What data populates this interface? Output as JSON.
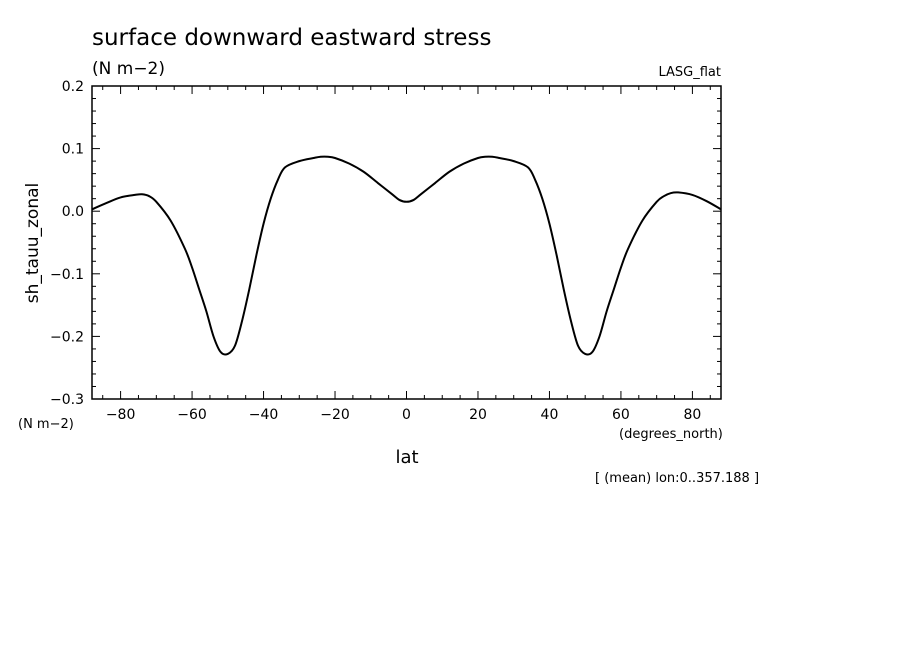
{
  "chart_data": {
    "type": "line",
    "title": "surface downward eastward stress",
    "subtitle": "(N m−2)",
    "source_label": "LASG_flat",
    "ylabel": "sh_tauu_zonal",
    "yunits": "(N m−2)",
    "xlabel": "lat",
    "xunits": "(degrees_north)",
    "note": "[ (mean) lon:0..357.188 ]",
    "xlim": [
      -88,
      88
    ],
    "ylim": [
      -0.3,
      0.2
    ],
    "x_ticks": [
      -80,
      -60,
      -40,
      -20,
      0,
      20,
      40,
      60,
      80
    ],
    "x_tick_labels": [
      "−80",
      "−60",
      "−40",
      "−20",
      "0",
      "20",
      "40",
      "60",
      "80"
    ],
    "y_ticks": [
      -0.3,
      -0.2,
      -0.1,
      0.0,
      0.1,
      0.2
    ],
    "y_tick_labels": [
      "−0.3",
      "−0.2",
      "−0.1",
      "0.0",
      "0.1",
      "0.2"
    ],
    "grid": false,
    "series": [
      {
        "color": "#000000",
        "x": [
          -88,
          -84,
          -80,
          -76,
          -74,
          -72,
          -70,
          -66,
          -62,
          -60,
          -58,
          -56,
          -54,
          -52,
          -50,
          -48,
          -46,
          -44,
          -42,
          -40,
          -38,
          -36,
          -34,
          -30,
          -26,
          -24,
          -22,
          -20,
          -16,
          -12,
          -8,
          -4,
          -2,
          0,
          2,
          4,
          8,
          12,
          16,
          20,
          22,
          24,
          26,
          30,
          34,
          36,
          38,
          40,
          42,
          44,
          46,
          48,
          50,
          52,
          54,
          56,
          58,
          60,
          62,
          66,
          70,
          72,
          74,
          76,
          80,
          84,
          88
        ],
        "y": [
          0.003,
          0.013,
          0.022,
          0.026,
          0.027,
          0.024,
          0.015,
          -0.015,
          -0.06,
          -0.09,
          -0.125,
          -0.16,
          -0.2,
          -0.225,
          -0.228,
          -0.215,
          -0.175,
          -0.125,
          -0.07,
          -0.02,
          0.02,
          0.05,
          0.07,
          0.08,
          0.085,
          0.087,
          0.087,
          0.085,
          0.076,
          0.063,
          0.045,
          0.027,
          0.018,
          0.015,
          0.018,
          0.027,
          0.045,
          0.063,
          0.076,
          0.085,
          0.087,
          0.087,
          0.085,
          0.08,
          0.07,
          0.05,
          0.02,
          -0.02,
          -0.07,
          -0.125,
          -0.175,
          -0.215,
          -0.228,
          -0.225,
          -0.2,
          -0.16,
          -0.125,
          -0.09,
          -0.06,
          -0.015,
          0.015,
          0.024,
          0.029,
          0.03,
          0.026,
          0.016,
          0.003
        ]
      }
    ]
  }
}
